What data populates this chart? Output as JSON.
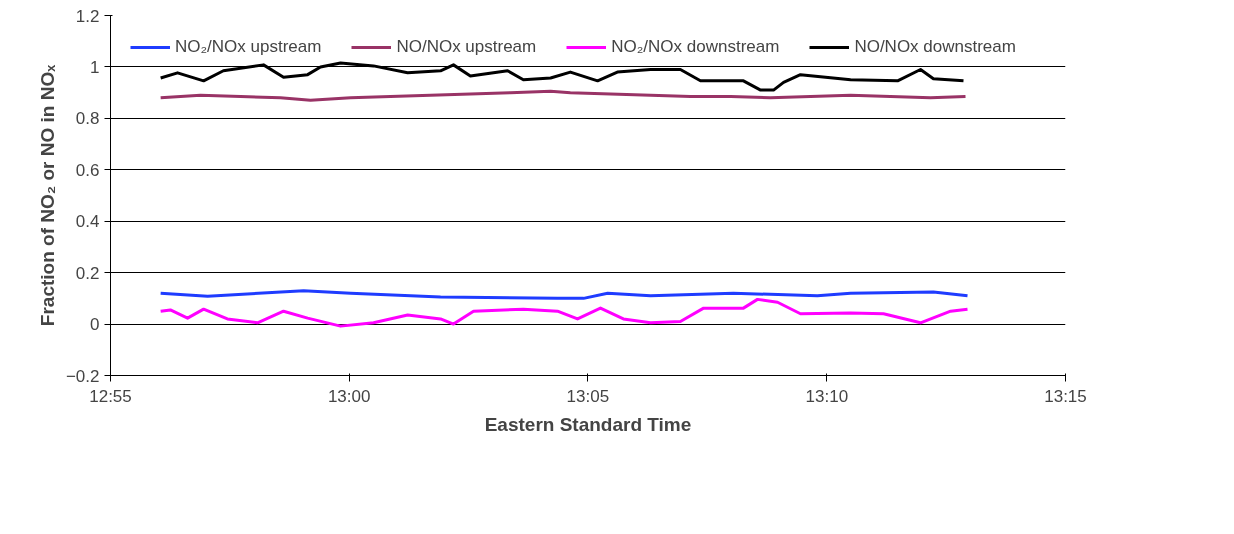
{
  "chart_data": {
    "type": "line",
    "xlabel": "Eastern Standard Time",
    "ylabel": "Fraction of NO₂ or NO in NOₓ",
    "xlim": [
      12.9167,
      13.25
    ],
    "xticks": [
      {
        "value": 12.9167,
        "label": "12:55"
      },
      {
        "value": 13.0,
        "label": "13:00"
      },
      {
        "value": 13.0833,
        "label": "13:05"
      },
      {
        "value": 13.1667,
        "label": "13:10"
      },
      {
        "value": 13.25,
        "label": "13:15"
      }
    ],
    "ylim": [
      -0.2,
      1.2
    ],
    "yticks": [
      -0.2,
      0,
      0.2,
      0.4,
      0.6,
      0.8,
      1,
      1.2
    ],
    "grid": "y",
    "legend": "top",
    "marker": "none",
    "line_style": "solid",
    "series": [
      {
        "name": "NO₂/NOx upstream",
        "color": "#1f3cff",
        "x": [
          12.9342,
          12.9506,
          12.9841,
          13.0005,
          13.0319,
          13.0727,
          13.0818,
          13.0902,
          13.1052,
          13.1341,
          13.1634,
          13.175,
          13.2039,
          13.2158
        ],
        "values": [
          0.12,
          0.108,
          0.13,
          0.12,
          0.105,
          0.1,
          0.1,
          0.12,
          0.11,
          0.12,
          0.11,
          0.12,
          0.125,
          0.11
        ]
      },
      {
        "name": "NO/NOx upstream",
        "color": "#993366",
        "x": [
          12.9342,
          12.9481,
          12.9621,
          12.976,
          12.9865,
          13.0005,
          13.0144,
          13.0284,
          13.0423,
          13.0563,
          13.0703,
          13.0772,
          13.0912,
          13.1052,
          13.1191,
          13.1331,
          13.147,
          13.161,
          13.175,
          13.1889,
          13.2029,
          13.2151
        ],
        "values": [
          0.88,
          0.89,
          0.885,
          0.88,
          0.87,
          0.88,
          0.885,
          0.89,
          0.895,
          0.9,
          0.905,
          0.9,
          0.895,
          0.89,
          0.885,
          0.885,
          0.88,
          0.885,
          0.89,
          0.885,
          0.88,
          0.885
        ]
      },
      {
        "name": "NO₂/NOx downstream",
        "color": "#ff00ff",
        "x": [
          12.9342,
          12.9376,
          12.9436,
          12.9492,
          12.9575,
          12.968,
          12.9771,
          12.9855,
          12.997,
          13.0085,
          13.0204,
          13.0319,
          13.0364,
          13.0434,
          13.0608,
          13.0727,
          13.0797,
          13.0877,
          13.0957,
          13.1052,
          13.1156,
          13.1237,
          13.1376,
          13.1425,
          13.1495,
          13.1575,
          13.175,
          13.1865,
          13.1994,
          13.2099,
          13.2158
        ],
        "values": [
          0.05,
          0.055,
          0.023,
          0.058,
          0.02,
          0.005,
          0.05,
          0.023,
          -0.008,
          0.005,
          0.035,
          0.02,
          0,
          0.05,
          0.058,
          0.05,
          0.02,
          0.062,
          0.02,
          0.005,
          0.01,
          0.062,
          0.062,
          0.096,
          0.085,
          0.04,
          0.043,
          0.04,
          0.005,
          0.05,
          0.058
        ]
      },
      {
        "name": "NO/NOx downstream",
        "color": "#000000",
        "x": [
          12.9342,
          12.9401,
          12.9492,
          12.9561,
          12.9701,
          12.9771,
          12.9855,
          12.99,
          12.997,
          13.0085,
          13.0204,
          13.0319,
          13.0364,
          13.0423,
          13.0553,
          13.0608,
          13.0703,
          13.0772,
          13.0867,
          13.0936,
          13.1052,
          13.1156,
          13.1226,
          13.1376,
          13.1436,
          13.1481,
          13.1516,
          13.1575,
          13.175,
          13.1914,
          13.1994,
          13.2039,
          13.2144
        ],
        "values": [
          0.957,
          0.977,
          0.946,
          0.985,
          1.008,
          0.96,
          0.97,
          1.0,
          1.015,
          1.004,
          0.977,
          0.985,
          1.008,
          0.965,
          0.985,
          0.95,
          0.957,
          0.98,
          0.946,
          0.98,
          0.99,
          0.99,
          0.946,
          0.946,
          0.91,
          0.91,
          0.94,
          0.97,
          0.95,
          0.946,
          0.99,
          0.954,
          0.946
        ]
      }
    ]
  }
}
